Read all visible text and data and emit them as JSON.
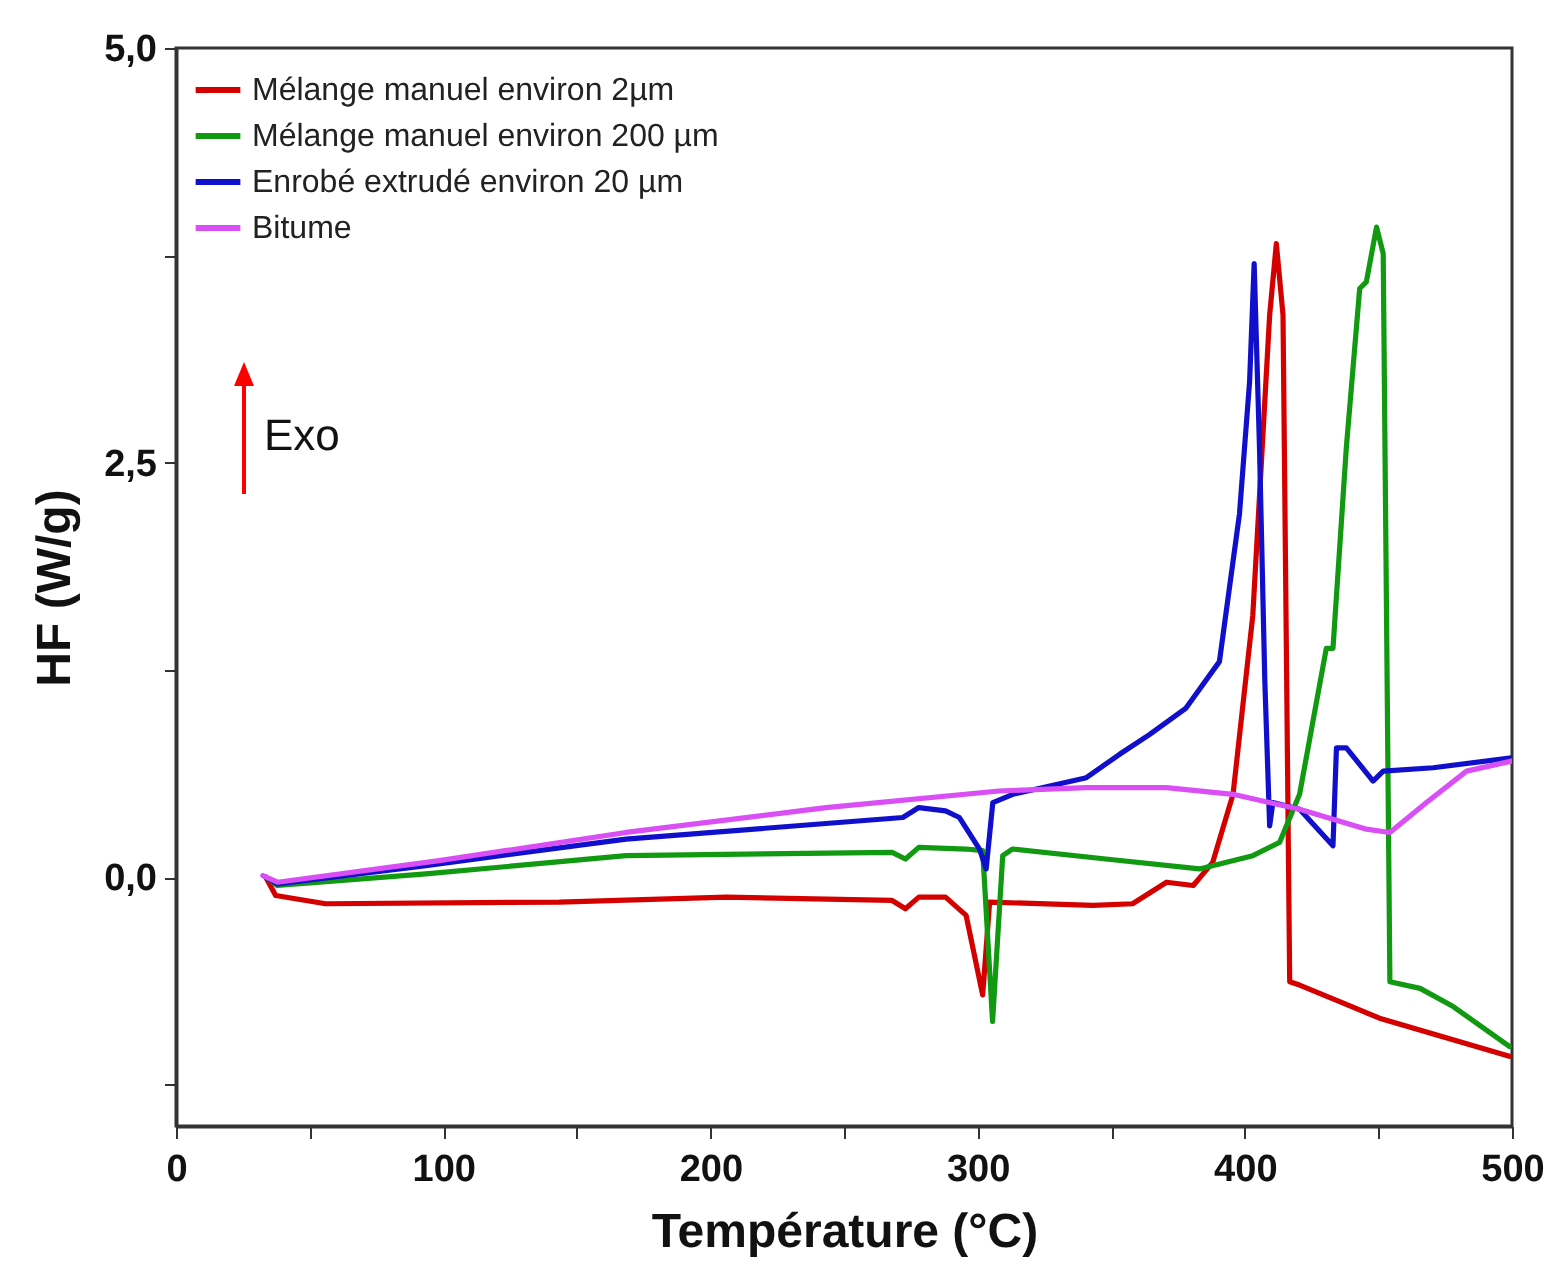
{
  "chart_data": {
    "type": "line",
    "xlabel": "Température (°C)",
    "ylabel": "HF (W/g)",
    "xlim": [
      0,
      500
    ],
    "xticks": [
      0,
      {
        "value": 50,
        "label": null
      },
      100,
      {
        "value": 150,
        "label": null
      },
      200,
      {
        "value": 250,
        "label": null
      },
      300,
      {
        "value": 350,
        "label": null
      },
      400,
      {
        "value": 450,
        "label": null
      },
      500
    ],
    "ylim": [
      -1.5,
      5
    ],
    "yticks": [
      {
        "value": -1.25,
        "label": null
      },
      {
        "value": 0,
        "label": "0,0"
      },
      {
        "value": 1.25,
        "label": null
      },
      {
        "value": 2.5,
        "label": "2,5"
      },
      {
        "value": 3.75,
        "label": null
      },
      {
        "value": 5,
        "label": "5,0"
      }
    ],
    "grid": false,
    "legend": "top left",
    "annotations": [
      "Exo"
    ],
    "series": [
      {
        "name": "Mélange manuel environ 2µm",
        "color": "#d40000",
        "x": [
          33.6,
          37.3,
          56,
          143.4,
          206,
          268,
          273,
          278,
          288,
          295.7,
          301.9,
          304.5,
          343.2,
          358,
          370.7,
          380.7,
          388,
          395.6,
          403,
          409.3,
          411.8,
          414.3,
          416.8,
          420.5,
          435.5,
          450.4,
          499
        ],
        "values": [
          0,
          -0.11,
          -0.16,
          -0.15,
          -0.12,
          -0.14,
          -0.19,
          -0.12,
          -0.12,
          -0.23,
          -0.71,
          -0.15,
          -0.17,
          -0.16,
          -0.03,
          -0.05,
          0.09,
          0.5,
          1.58,
          3.39,
          3.82,
          3.39,
          -0.63,
          -0.65,
          -0.75,
          -0.85,
          -1.08
        ]
      },
      {
        "name": "Mélange manuel environ 200 µm",
        "color": "#119911",
        "x": [
          33.6,
          38,
          93.5,
          168.4,
          268,
          273,
          278,
          295.7,
          301.9,
          305.6,
          309.4,
          313,
          348,
          383,
          403,
          413,
          420.5,
          430.5,
          433,
          438,
          443,
          445.5,
          449.3,
          451.8,
          454.3,
          465.6,
          478,
          499
        ],
        "values": [
          0,
          -0.05,
          0.02,
          0.13,
          0.15,
          0.11,
          0.18,
          0.17,
          0.16,
          -0.87,
          0.13,
          0.17,
          0.11,
          0.05,
          0.13,
          0.21,
          0.5,
          1.38,
          1.38,
          2.59,
          3.55,
          3.59,
          3.92,
          3.76,
          -0.63,
          -0.67,
          -0.78,
          -1.02
        ]
      },
      {
        "name": "Enrobé extrudé environ 20 µm",
        "color": "#1010cc",
        "x": [
          33.6,
          38,
          93.5,
          168.4,
          272,
          278,
          288,
          293.2,
          300.7,
          303.2,
          305.7,
          313.2,
          340.7,
          353,
          364.3,
          378,
          390.5,
          398,
          401.8,
          403.5,
          405.5,
          407.5,
          409.3,
          410.5,
          420.5,
          433,
          434.3,
          438,
          448,
          451.8,
          470.5,
          499.8
        ],
        "values": [
          0,
          -0.04,
          0.07,
          0.23,
          0.36,
          0.42,
          0.4,
          0.36,
          0.17,
          0.05,
          0.45,
          0.5,
          0.6,
          0.74,
          0.86,
          1.02,
          1.3,
          2.19,
          2.99,
          3.7,
          2.59,
          1.18,
          0.31,
          0.45,
          0.41,
          0.19,
          0.78,
          0.78,
          0.58,
          0.64,
          0.66,
          0.72
        ]
      },
      {
        "name": "Bitume",
        "color": "#d94ff5",
        "x": [
          32.5,
          38,
          98.5,
          168.4,
          243.3,
          308,
          340.7,
          370.7,
          395.6,
          420.5,
          445.5,
          454.3,
          468,
          483,
          499.8
        ],
        "values": [
          0.01,
          -0.03,
          0.1,
          0.27,
          0.42,
          0.52,
          0.54,
          0.54,
          0.5,
          0.41,
          0.29,
          0.27,
          0.45,
          0.64,
          0.7
        ]
      }
    ]
  }
}
